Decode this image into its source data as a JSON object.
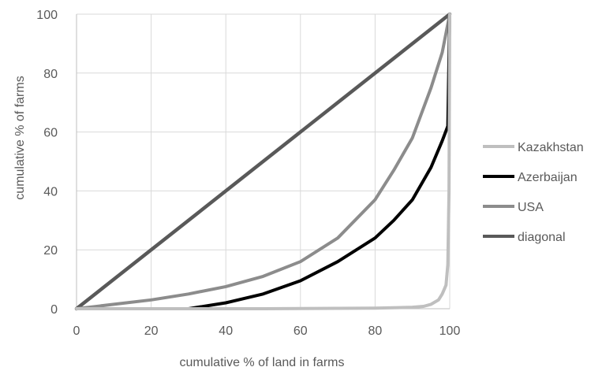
{
  "chart_data": {
    "type": "line",
    "xlabel": "cumulative % of land in farms",
    "ylabel": "cumulative % of farms",
    "xlim": [
      0,
      100
    ],
    "ylim": [
      0,
      100
    ],
    "x_ticks": [
      0,
      20,
      40,
      60,
      80,
      100
    ],
    "y_ticks": [
      0,
      20,
      40,
      60,
      80,
      100
    ],
    "grid": true,
    "legend_position": "right",
    "series": [
      {
        "name": "Kazakhstan",
        "color": "#bfbfbf",
        "x": [
          0,
          50,
          80,
          90,
          93,
          95,
          97,
          98,
          99,
          99.5,
          99.8,
          100
        ],
        "y": [
          0,
          0,
          0.2,
          0.5,
          0.8,
          1.5,
          3,
          5,
          8,
          15,
          40,
          100
        ]
      },
      {
        "name": "Azerbaijan",
        "color": "#000000",
        "x": [
          0,
          10,
          20,
          30,
          40,
          50,
          60,
          70,
          80,
          85,
          90,
          95,
          98,
          99.5,
          100
        ],
        "y": [
          0,
          0,
          0,
          0,
          2,
          5,
          9.5,
          16,
          24,
          30,
          37,
          48,
          57,
          62,
          100
        ]
      },
      {
        "name": "USA",
        "color": "#8c8c8c",
        "x": [
          0,
          10,
          20,
          30,
          40,
          50,
          60,
          70,
          80,
          85,
          90,
          95,
          98,
          100
        ],
        "y": [
          0,
          1.5,
          3,
          5,
          7.5,
          11,
          16,
          24,
          37,
          47,
          58,
          75,
          87,
          100
        ]
      },
      {
        "name": "diagonal",
        "color": "#595959",
        "x": [
          0,
          100
        ],
        "y": [
          0,
          100
        ]
      }
    ]
  }
}
